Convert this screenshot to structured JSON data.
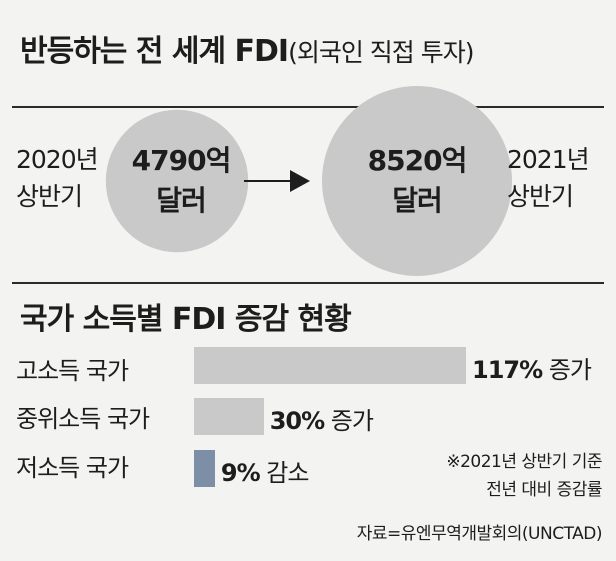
{
  "header": {
    "title": "반등하는 전 세계 FDI",
    "subtitle": "(외국인 직접 투자)"
  },
  "comparison": {
    "left_period": [
      "2020년",
      "상반기"
    ],
    "left_value": [
      "4790억",
      "달러"
    ],
    "right_period": [
      "2021년",
      "상반기"
    ],
    "right_value": [
      "8520억",
      "달러"
    ],
    "circle_color": "#c9c9c9",
    "arrow_color": "#1d1d1d"
  },
  "section2": {
    "title": "국가 소득별 FDI 증감 현황"
  },
  "chart_data": [
    {
      "type": "bubble",
      "title": "반등하는 전 세계 FDI(외국인 직접 투자)",
      "categories": [
        "2020년 상반기",
        "2021년 상반기"
      ],
      "values": [
        4790,
        8520
      ],
      "unit": "억 달러"
    },
    {
      "type": "bar",
      "orientation": "horizontal",
      "title": "국가 소득별 FDI 증감 현황",
      "categories": [
        "고소득 국가",
        "중위소득 국가",
        "저소득 국가"
      ],
      "values": [
        117,
        30,
        -9
      ],
      "value_labels": [
        {
          "num": "117%",
          "dir": " 증가"
        },
        {
          "num": "30%",
          "dir": " 증가"
        },
        {
          "num": "9%",
          "dir": " 감소"
        }
      ],
      "colors": [
        "#c9c9c9",
        "#c9c9c9",
        "#7c8fa6"
      ]
    }
  ],
  "notes": {
    "line1": "※2021년 상반기 기준",
    "line2": "전년 대비 증감률"
  },
  "source": "자료=유엔무역개발회의(UNCTAD)"
}
